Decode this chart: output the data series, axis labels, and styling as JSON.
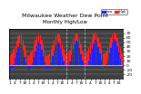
{
  "title": "Milwaukee Weather Dew Point",
  "subtitle": "Monthly High/Low",
  "background_color": "#ffffff",
  "plot_bg_color": "#404040",
  "bar_width": 0.8,
  "high_color": "#ff2222",
  "low_color": "#2222ff",
  "legend_high": "High",
  "legend_low": "Low",
  "highs": [
    22,
    25,
    35,
    42,
    54,
    63,
    68,
    65,
    56,
    44,
    33,
    22,
    20,
    28,
    33,
    45,
    55,
    64,
    67,
    66,
    55,
    45,
    31,
    20,
    24,
    26,
    36,
    44,
    56,
    65,
    70,
    67,
    58,
    46,
    35,
    23,
    21,
    27,
    34,
    46,
    57,
    66,
    69,
    67,
    57,
    46,
    32,
    21,
    23,
    29,
    37,
    47,
    58,
    67,
    71,
    68,
    59,
    47,
    36,
    24,
    25,
    30,
    38,
    48,
    59,
    68,
    72,
    69,
    60,
    48,
    37,
    25
  ],
  "lows": [
    -12,
    -8,
    2,
    16,
    28,
    40,
    48,
    44,
    32,
    18,
    4,
    -10,
    -10,
    -6,
    4,
    18,
    30,
    42,
    50,
    46,
    34,
    20,
    6,
    -8,
    -8,
    -4,
    6,
    20,
    32,
    44,
    52,
    48,
    36,
    22,
    8,
    -6,
    -6,
    -2,
    8,
    22,
    34,
    46,
    54,
    50,
    38,
    24,
    10,
    -4,
    -4,
    0,
    10,
    24,
    36,
    48,
    56,
    52,
    40,
    26,
    12,
    -2,
    -2,
    2,
    12,
    26,
    38,
    50,
    58,
    54,
    42,
    28,
    14,
    0
  ],
  "ylim": [
    -30,
    80
  ],
  "yticks": [
    -20,
    -10,
    0,
    10,
    20,
    30,
    40,
    50,
    60,
    70
  ],
  "num_bars": 72,
  "dashed_vline_positions": [
    35.5,
    47.5
  ],
  "x_tick_every": 3,
  "title_fontsize": 4.5,
  "tick_fontsize": 3.2
}
